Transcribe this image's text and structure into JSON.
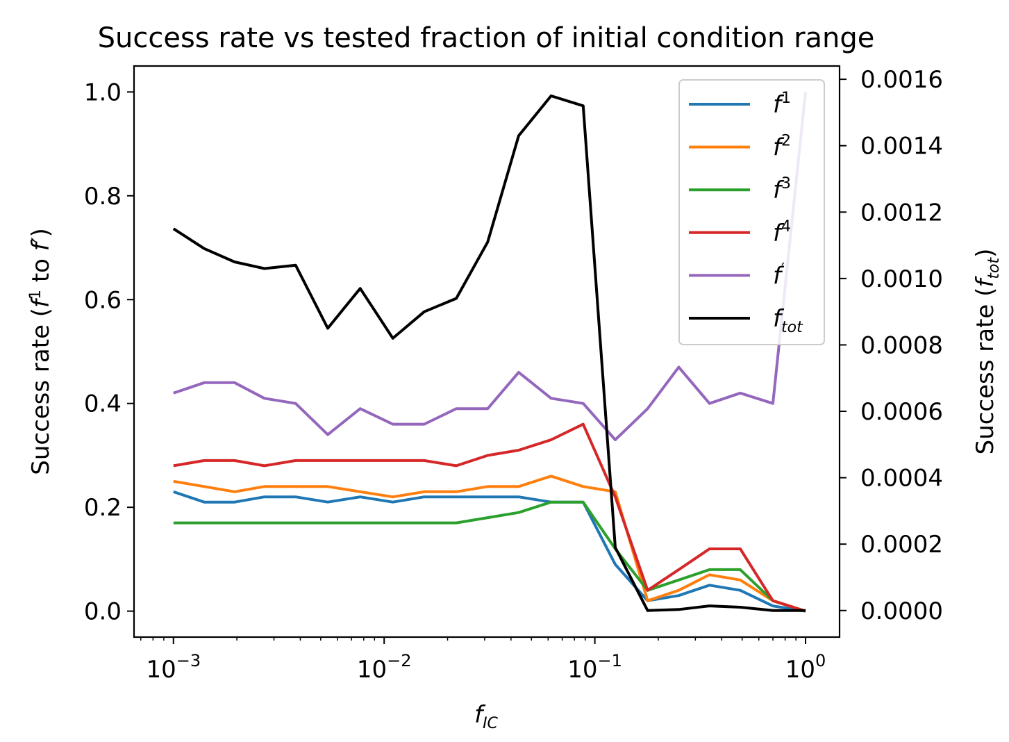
{
  "chart_data": {
    "type": "line",
    "title": "Success rate vs tested fraction of initial condition range",
    "xlabel": "f_IC",
    "ylabel_left": "Success rate (f¹ to f′)",
    "ylabel_right": "Success rate (f_tot)",
    "x_scale": "log",
    "xlim": [
      0.00065,
      1.45
    ],
    "ylim_left": [
      -0.05,
      1.05
    ],
    "ylim_right": [
      -8e-05,
      0.00164
    ],
    "x_ticks": [
      {
        "value": 0.001,
        "base": "10",
        "exp": "−3"
      },
      {
        "value": 0.01,
        "base": "10",
        "exp": "−2"
      },
      {
        "value": 0.1,
        "base": "10",
        "exp": "−1"
      },
      {
        "value": 1,
        "base": "10",
        "exp": "0"
      }
    ],
    "y_ticks_left": [
      "0.0",
      "0.2",
      "0.4",
      "0.6",
      "0.8",
      "1.0"
    ],
    "y_ticks_left_values": [
      0.0,
      0.2,
      0.4,
      0.6,
      0.8,
      1.0
    ],
    "y_ticks_right": [
      "0.0000",
      "0.0002",
      "0.0004",
      "0.0006",
      "0.0008",
      "0.0010",
      "0.0012",
      "0.0014",
      "0.0016"
    ],
    "y_ticks_right_values": [
      0.0,
      0.0002,
      0.0004,
      0.0006,
      0.0008,
      0.001,
      0.0012,
      0.0014,
      0.0016
    ],
    "x": [
      0.001,
      0.0014,
      0.00195,
      0.0027,
      0.0038,
      0.0054,
      0.0077,
      0.011,
      0.0155,
      0.022,
      0.031,
      0.0435,
      0.062,
      0.088,
      0.125,
      0.178,
      0.25,
      0.35,
      0.49,
      0.7,
      1.0
    ],
    "series": [
      {
        "name": "f",
        "sup": "1",
        "color": "#1f77b4",
        "axis": "left",
        "values": [
          0.23,
          0.21,
          0.21,
          0.22,
          0.22,
          0.21,
          0.22,
          0.21,
          0.22,
          0.22,
          0.22,
          0.22,
          0.21,
          0.21,
          0.09,
          0.02,
          0.03,
          0.05,
          0.04,
          0.01,
          0.0
        ]
      },
      {
        "name": "f",
        "sup": "2",
        "color": "#ff7f0e",
        "axis": "left",
        "values": [
          0.25,
          0.24,
          0.23,
          0.24,
          0.24,
          0.24,
          0.23,
          0.22,
          0.23,
          0.23,
          0.24,
          0.24,
          0.26,
          0.24,
          0.23,
          0.02,
          0.04,
          0.07,
          0.06,
          0.02,
          0.0
        ]
      },
      {
        "name": "f",
        "sup": "3",
        "color": "#2ca02c",
        "axis": "left",
        "values": [
          0.17,
          0.17,
          0.17,
          0.17,
          0.17,
          0.17,
          0.17,
          0.17,
          0.17,
          0.17,
          0.18,
          0.19,
          0.21,
          0.21,
          0.12,
          0.04,
          0.06,
          0.08,
          0.08,
          0.02,
          0.0
        ]
      },
      {
        "name": "f",
        "sup": "4",
        "color": "#d62728",
        "axis": "left",
        "values": [
          0.28,
          0.29,
          0.29,
          0.28,
          0.29,
          0.29,
          0.29,
          0.29,
          0.29,
          0.28,
          0.3,
          0.31,
          0.33,
          0.36,
          0.22,
          0.04,
          0.08,
          0.12,
          0.12,
          0.02,
          0.0
        ]
      },
      {
        "name": "f",
        "sup": "′",
        "color": "#9467bd",
        "axis": "left",
        "values": [
          0.42,
          0.44,
          0.44,
          0.41,
          0.4,
          0.34,
          0.39,
          0.36,
          0.36,
          0.39,
          0.39,
          0.46,
          0.41,
          0.4,
          0.33,
          0.39,
          0.47,
          0.4,
          0.42,
          0.4,
          1.0
        ]
      },
      {
        "name": "f",
        "sub": "tot",
        "color": "#000000",
        "axis": "right",
        "values": [
          0.00115,
          0.00109,
          0.00105,
          0.00103,
          0.00104,
          0.00085,
          0.00097,
          0.00082,
          0.0009,
          0.00094,
          0.00111,
          0.00143,
          0.00155,
          0.00152,
          0.00019,
          0.0,
          3e-06,
          1.4e-05,
          1e-05,
          0.0,
          0.0
        ]
      }
    ],
    "legend_position": "upper right",
    "grid": false
  }
}
